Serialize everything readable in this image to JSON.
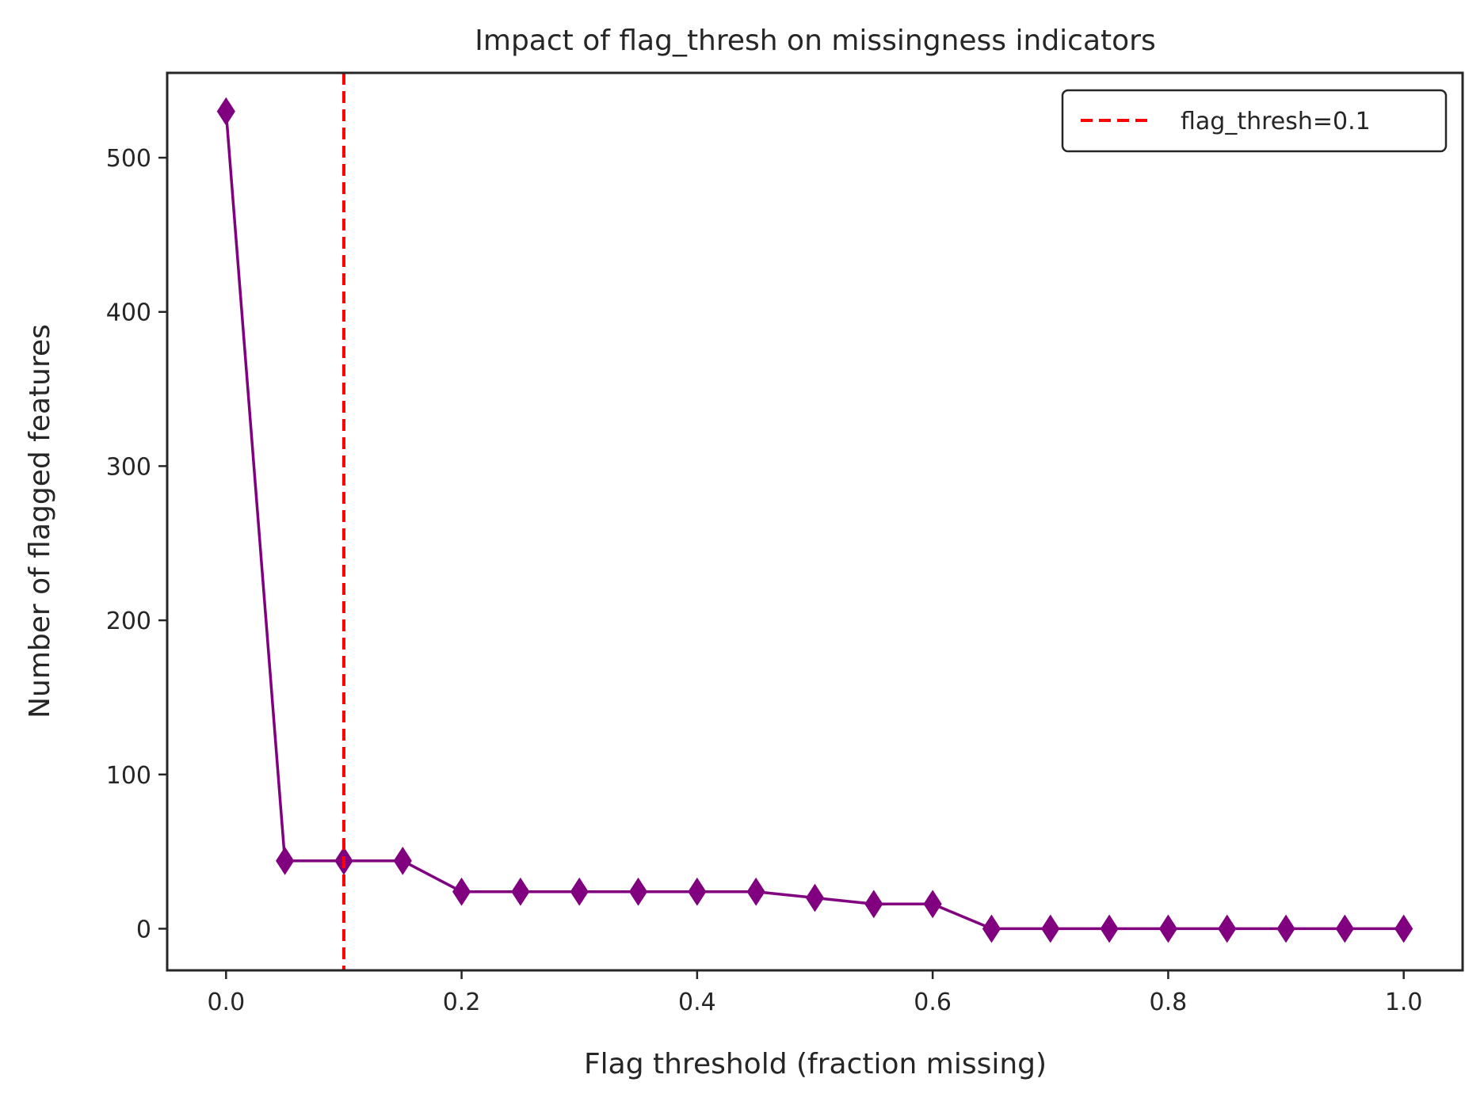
{
  "chart_data": {
    "type": "line",
    "title": "Impact of flag_thresh on missingness indicators",
    "xlabel": "Flag threshold (fraction missing)",
    "ylabel": "Number of flagged features",
    "xlim": [
      -0.05,
      1.05
    ],
    "ylim": [
      -27,
      555
    ],
    "xticks": [
      0.0,
      0.2,
      0.4,
      0.6,
      0.8,
      1.0
    ],
    "xtick_labels": [
      "0.0",
      "0.2",
      "0.4",
      "0.6",
      "0.8",
      "1.0"
    ],
    "yticks": [
      0,
      100,
      200,
      300,
      400,
      500
    ],
    "ytick_labels": [
      "0",
      "100",
      "200",
      "300",
      "400",
      "500"
    ],
    "grid": false,
    "legend_position": "top-right",
    "series": [
      {
        "color": "#800080",
        "marker": "diamond",
        "x": [
          0.0,
          0.05,
          0.1,
          0.15,
          0.2,
          0.25,
          0.3,
          0.35,
          0.4,
          0.45,
          0.5,
          0.55,
          0.6,
          0.65,
          0.7,
          0.75,
          0.8,
          0.85,
          0.9,
          0.95,
          1.0
        ],
        "y": [
          530,
          44,
          44,
          44,
          24,
          24,
          24,
          24,
          24,
          24,
          20,
          16,
          16,
          0,
          0,
          0,
          0,
          0,
          0,
          0,
          0
        ]
      }
    ],
    "reference_lines": [
      {
        "orientation": "vertical",
        "x": 0.1,
        "color": "#ff0000",
        "style": "dashed",
        "label": "flag_thresh=0.1"
      }
    ]
  }
}
